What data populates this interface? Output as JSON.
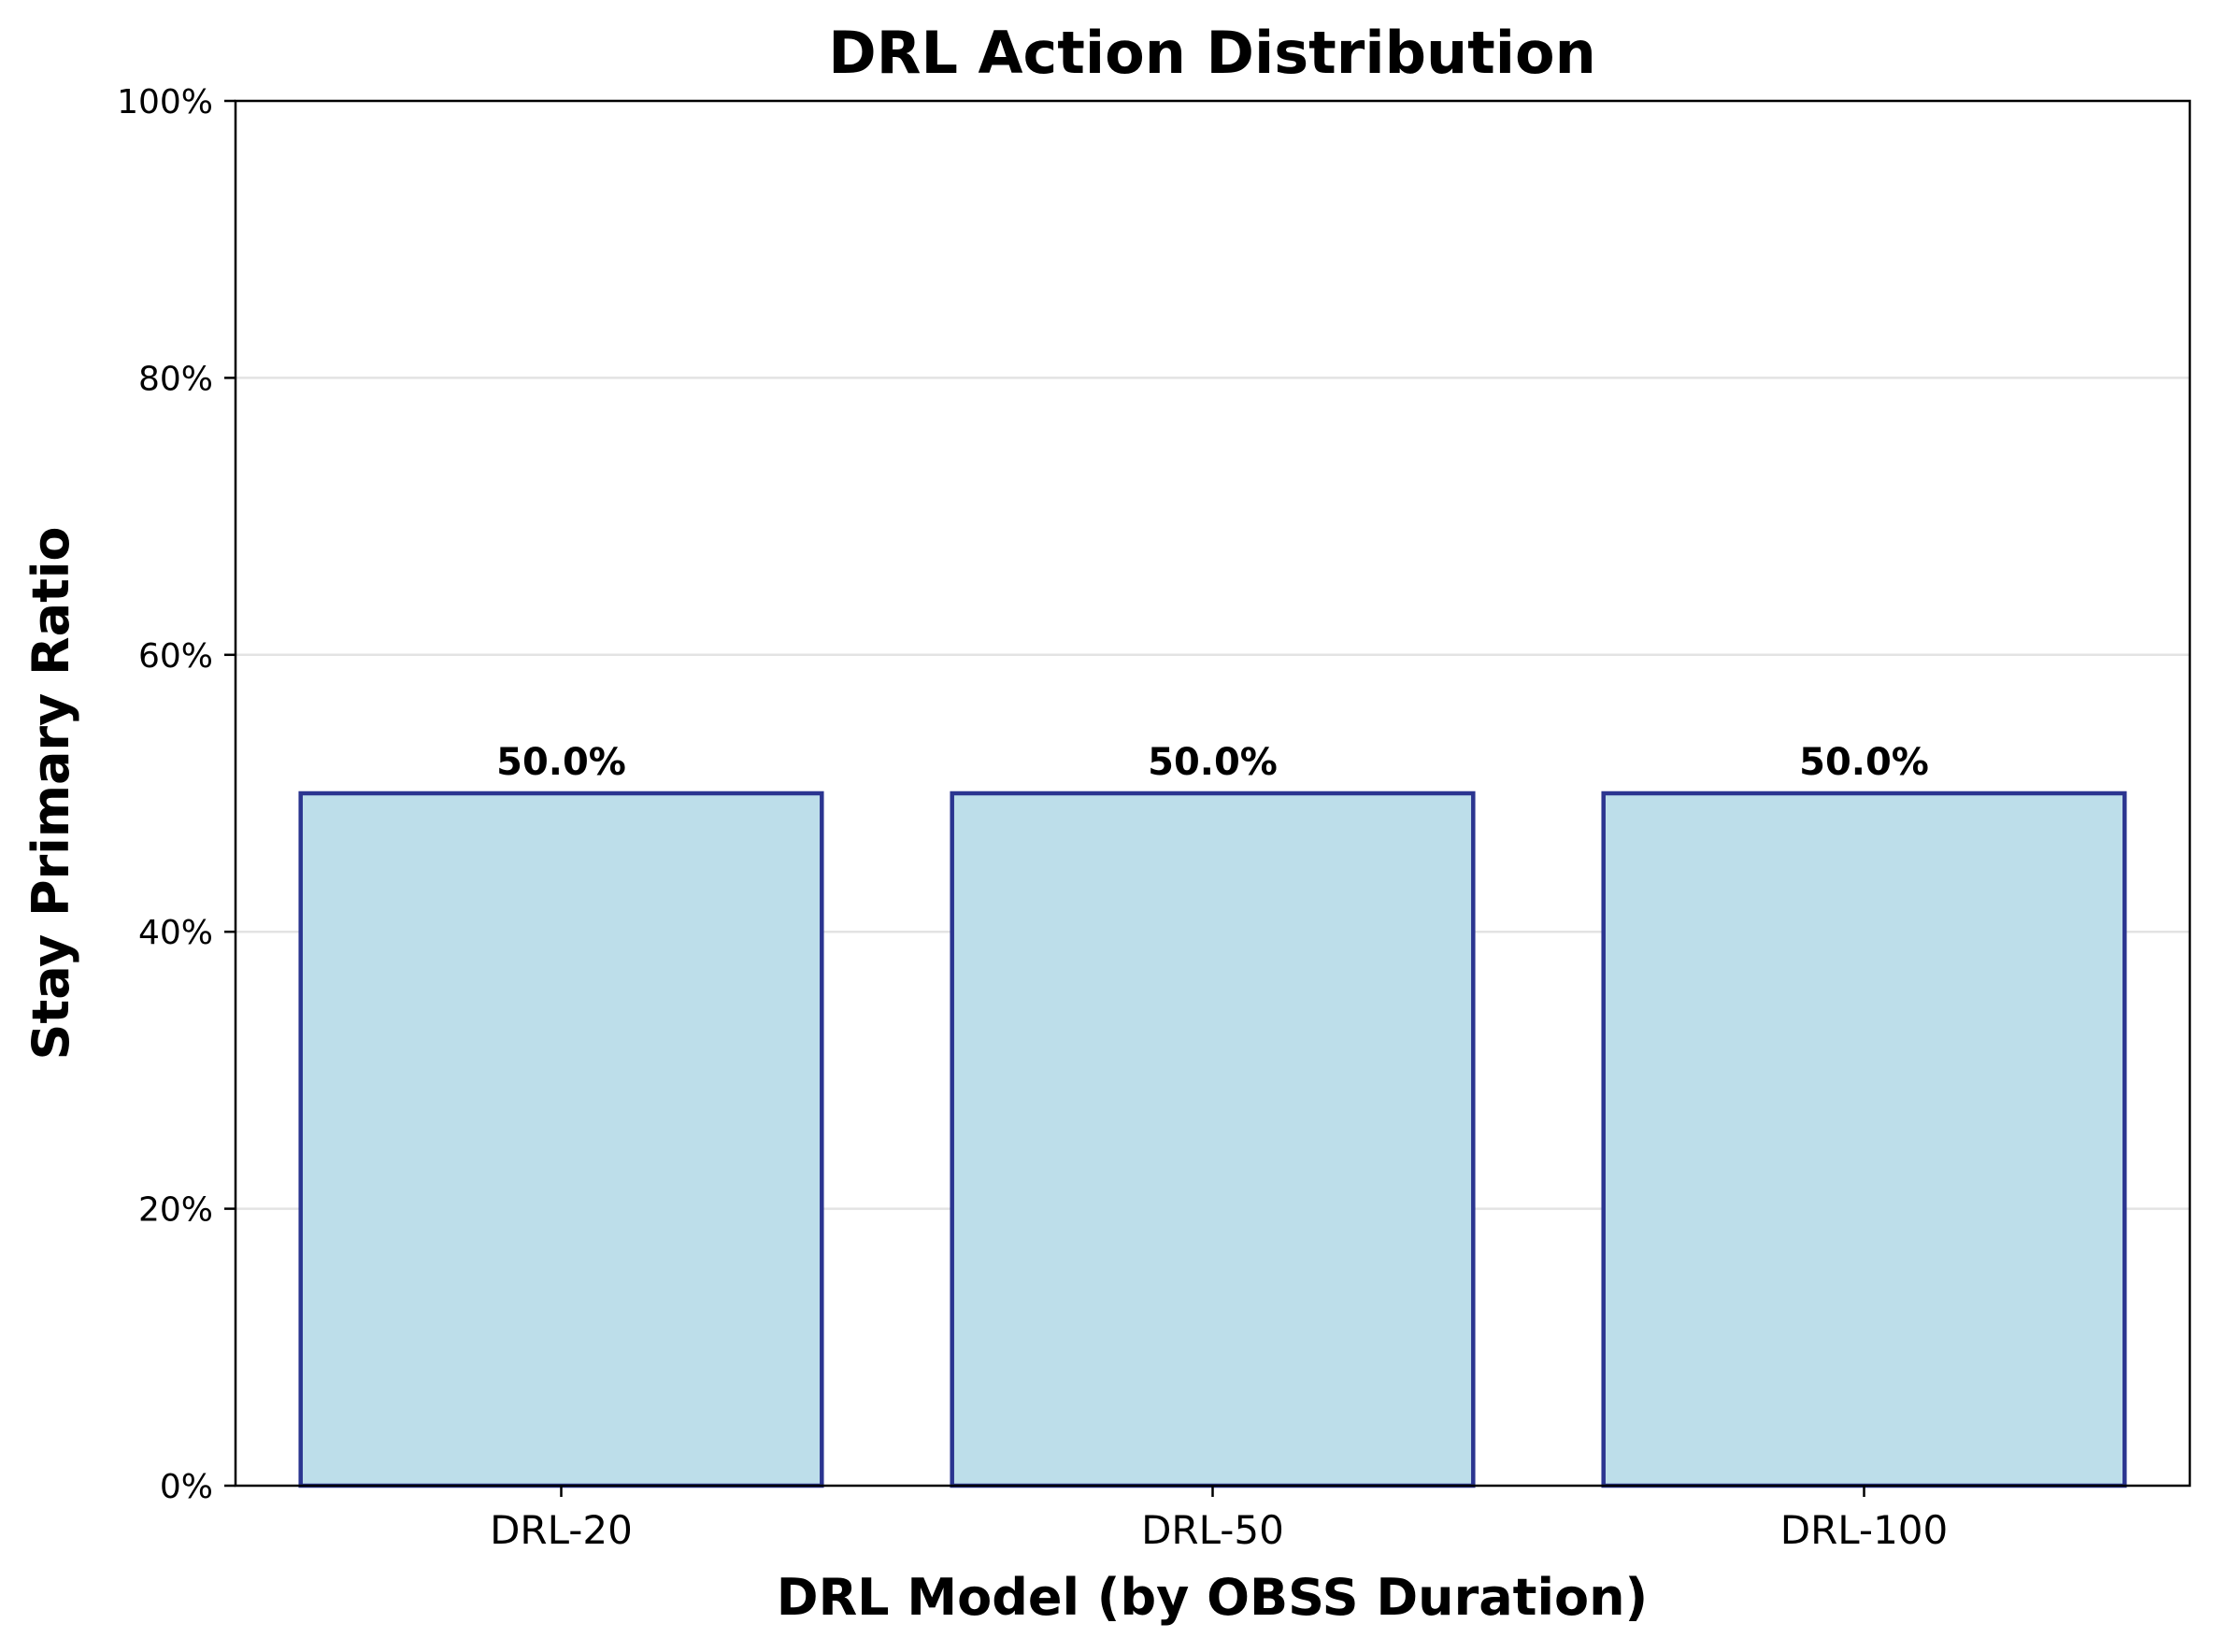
{
  "chart_data": {
    "type": "bar",
    "title": "DRL Action Distribution",
    "xlabel": "DRL Model (by OBSS Duration)",
    "ylabel": "Stay Primary Ratio",
    "categories": [
      "DRL-20",
      "DRL-50",
      "DRL-100"
    ],
    "values": [
      50.0,
      50.0,
      50.0
    ],
    "data_labels": [
      "50.0%",
      "50.0%",
      "50.0%"
    ],
    "ylim": [
      0,
      100
    ],
    "yticks": [
      0,
      20,
      40,
      60,
      80,
      100
    ],
    "ytick_labels": [
      "0%",
      "20%",
      "40%",
      "60%",
      "80%",
      "100%"
    ],
    "grid": "y",
    "legend": "none",
    "colors": {
      "bar_fill": "#bddeea",
      "bar_edge": "#2b3590",
      "grid": "#e3e3e3",
      "axis": "#000000"
    }
  }
}
